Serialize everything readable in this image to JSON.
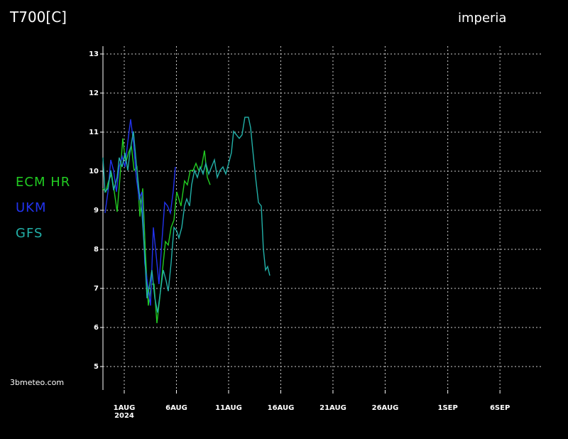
{
  "chart_data": {
    "type": "line",
    "title": "T700[C]",
    "subtitle": "imperia",
    "source": "3bmeteo.com",
    "x_sublabel": "2024",
    "xlim": [
      -2.04,
      40.14
    ],
    "ylim": [
      4.4,
      13.2
    ],
    "yticks": [
      5,
      6,
      7,
      8,
      9,
      10,
      11,
      12,
      13
    ],
    "xticks": [
      {
        "value": 0,
        "label": "1AUG"
      },
      {
        "value": 5,
        "label": "6AUG"
      },
      {
        "value": 10,
        "label": "11AUG"
      },
      {
        "value": 15,
        "label": "16AUG"
      },
      {
        "value": 20,
        "label": "21AUG"
      },
      {
        "value": 25,
        "label": "26AUG"
      },
      {
        "value": 31,
        "label": "1SEP"
      },
      {
        "value": 36,
        "label": "6SEP"
      }
    ],
    "grid": true,
    "series": [
      {
        "name": "ECM HR",
        "color": "#22cc22",
        "x": [
          -2.04,
          -1.77,
          -1.5,
          -1.22,
          -0.95,
          -0.68,
          -0.41,
          -0.14,
          0.14,
          0.41,
          0.68,
          0.95,
          1.22,
          1.5,
          1.77,
          2.04,
          2.31,
          2.59,
          2.86,
          3.13,
          3.4,
          3.67,
          3.95,
          4.22,
          4.49,
          4.76,
          5.03,
          5.44,
          5.78,
          6.05,
          6.33,
          6.6,
          6.87,
          7.14,
          7.41,
          7.69,
          7.96,
          8.23
        ],
        "values": [
          9.56,
          9.47,
          9.75,
          9.93,
          9.47,
          8.96,
          9.84,
          10.84,
          10.2,
          10.47,
          10.65,
          10.02,
          10.11,
          8.84,
          9.56,
          7.84,
          6.56,
          7.11,
          7.11,
          6.11,
          6.75,
          7.47,
          8.2,
          8.11,
          8.56,
          8.75,
          9.47,
          9.11,
          9.75,
          9.65,
          10.02,
          10.02,
          10.2,
          10.02,
          10.11,
          10.53,
          9.84,
          9.65
        ]
      },
      {
        "name": "UKM",
        "color": "#2233ee",
        "x": [
          -1.84,
          -1.56,
          -1.29,
          -1.02,
          -0.75,
          -0.48,
          -0.2,
          0.07,
          0.34,
          0.61,
          0.88,
          1.16,
          1.43,
          1.7,
          1.97,
          2.24,
          2.52,
          2.79,
          3.06,
          3.33,
          3.61,
          3.88,
          4.15,
          4.42,
          4.69,
          4.9
        ],
        "values": [
          8.93,
          9.47,
          10.29,
          10.02,
          9.47,
          10.11,
          10.38,
          10.11,
          10.75,
          11.33,
          10.75,
          9.84,
          9.29,
          9.47,
          7.65,
          7.11,
          6.56,
          8.56,
          7.84,
          7.11,
          8.2,
          9.2,
          9.11,
          8.93,
          9.47,
          10.11
        ]
      },
      {
        "name": "GFS",
        "color": "#22b0a8",
        "x": [
          -2.04,
          -1.84,
          -1.56,
          -1.29,
          -1.02,
          -0.68,
          -0.48,
          -0.2,
          0.07,
          0.34,
          0.54,
          0.88,
          1.16,
          1.43,
          1.7,
          1.97,
          2.18,
          2.45,
          2.65,
          2.93,
          3.2,
          3.47,
          3.74,
          4.01,
          4.22,
          4.49,
          4.76,
          5.03,
          5.24,
          5.51,
          5.78,
          5.99,
          6.26,
          6.46,
          6.73,
          7.01,
          7.28,
          7.55,
          7.82,
          8.1,
          8.37,
          8.64,
          8.91,
          9.18,
          9.46,
          9.73,
          10,
          10.27,
          10.48,
          10.75,
          11.02,
          11.29,
          11.56,
          11.9,
          12.11,
          12.31,
          12.59,
          12.86,
          13.13,
          13.33,
          13.54,
          13.74,
          13.95
        ],
        "values": [
          10.35,
          9.47,
          9.56,
          10.02,
          9.51,
          9.84,
          10.35,
          10.11,
          10.47,
          10.02,
          10.47,
          11.02,
          10.2,
          9.47,
          8.93,
          7.84,
          6.75,
          7.11,
          7.47,
          6.75,
          6.38,
          6.93,
          7.47,
          7.2,
          6.93,
          7.65,
          8.56,
          8.47,
          8.29,
          8.56,
          9.11,
          9.29,
          9.11,
          9.65,
          10.02,
          9.84,
          10.11,
          9.93,
          10.2,
          9.93,
          10.11,
          10.29,
          9.84,
          10.02,
          10.11,
          9.93,
          10.2,
          10.47,
          11.02,
          10.93,
          10.84,
          10.93,
          11.38,
          11.38,
          11.11,
          10.56,
          9.84,
          9.2,
          9.11,
          8.02,
          7.47,
          7.56,
          7.33
        ]
      }
    ]
  }
}
